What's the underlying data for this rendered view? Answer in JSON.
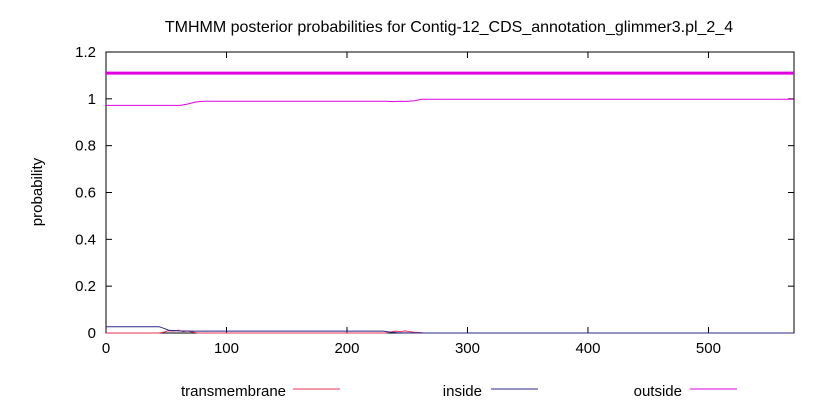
{
  "chart_data": {
    "type": "line",
    "title": "TMHMM posterior probabilities for Contig-12_CDS_annotation_glimmer3.pl_2_4",
    "xlabel": "",
    "ylabel": "probability",
    "xlim": [
      0,
      571
    ],
    "ylim": [
      0,
      1.2
    ],
    "x_ticks": [
      0,
      100,
      200,
      300,
      400,
      500
    ],
    "x_tick_labels": [
      "0",
      "100",
      "200",
      "300",
      "400",
      "500"
    ],
    "y_ticks": [
      0,
      0.2,
      0.4,
      0.6,
      0.8,
      1,
      1.2
    ],
    "y_tick_labels": [
      "0",
      "0.2",
      "0.4",
      "0.6",
      "0.8",
      "1",
      "1.2"
    ],
    "grid": false,
    "legend_position": "bottom",
    "overlay_line": {
      "y": 1.11,
      "color": "#e000e0"
    },
    "series": [
      {
        "name": "transmembrane",
        "color": "#e8305a",
        "x": [
          0,
          44,
          48,
          52,
          56,
          60,
          64,
          68,
          72,
          76,
          232,
          236,
          240,
          244,
          248,
          252,
          256,
          260,
          264,
          571
        ],
        "y": [
          0,
          0,
          0.004,
          0.01,
          0.008,
          0.012,
          0.006,
          0.009,
          0.004,
          0,
          0,
          0.004,
          0.008,
          0.005,
          0.009,
          0.006,
          0.003,
          0.002,
          0,
          0
        ]
      },
      {
        "name": "inside",
        "color": "#2a2a8a",
        "x": [
          0,
          44,
          48,
          52,
          60,
          70,
          230,
          236,
          242,
          260,
          571
        ],
        "y": [
          0.027,
          0.027,
          0.02,
          0.012,
          0.009,
          0.008,
          0.008,
          0.004,
          0.001,
          0.0,
          0.0
        ]
      },
      {
        "name": "outside",
        "color": "#e000e0",
        "x": [
          0,
          62,
          68,
          74,
          80,
          232,
          238,
          244,
          250,
          256,
          262,
          571
        ],
        "y": [
          0.972,
          0.972,
          0.978,
          0.986,
          0.99,
          0.99,
          0.988,
          0.99,
          0.989,
          0.992,
          0.998,
          0.998
        ]
      }
    ]
  }
}
